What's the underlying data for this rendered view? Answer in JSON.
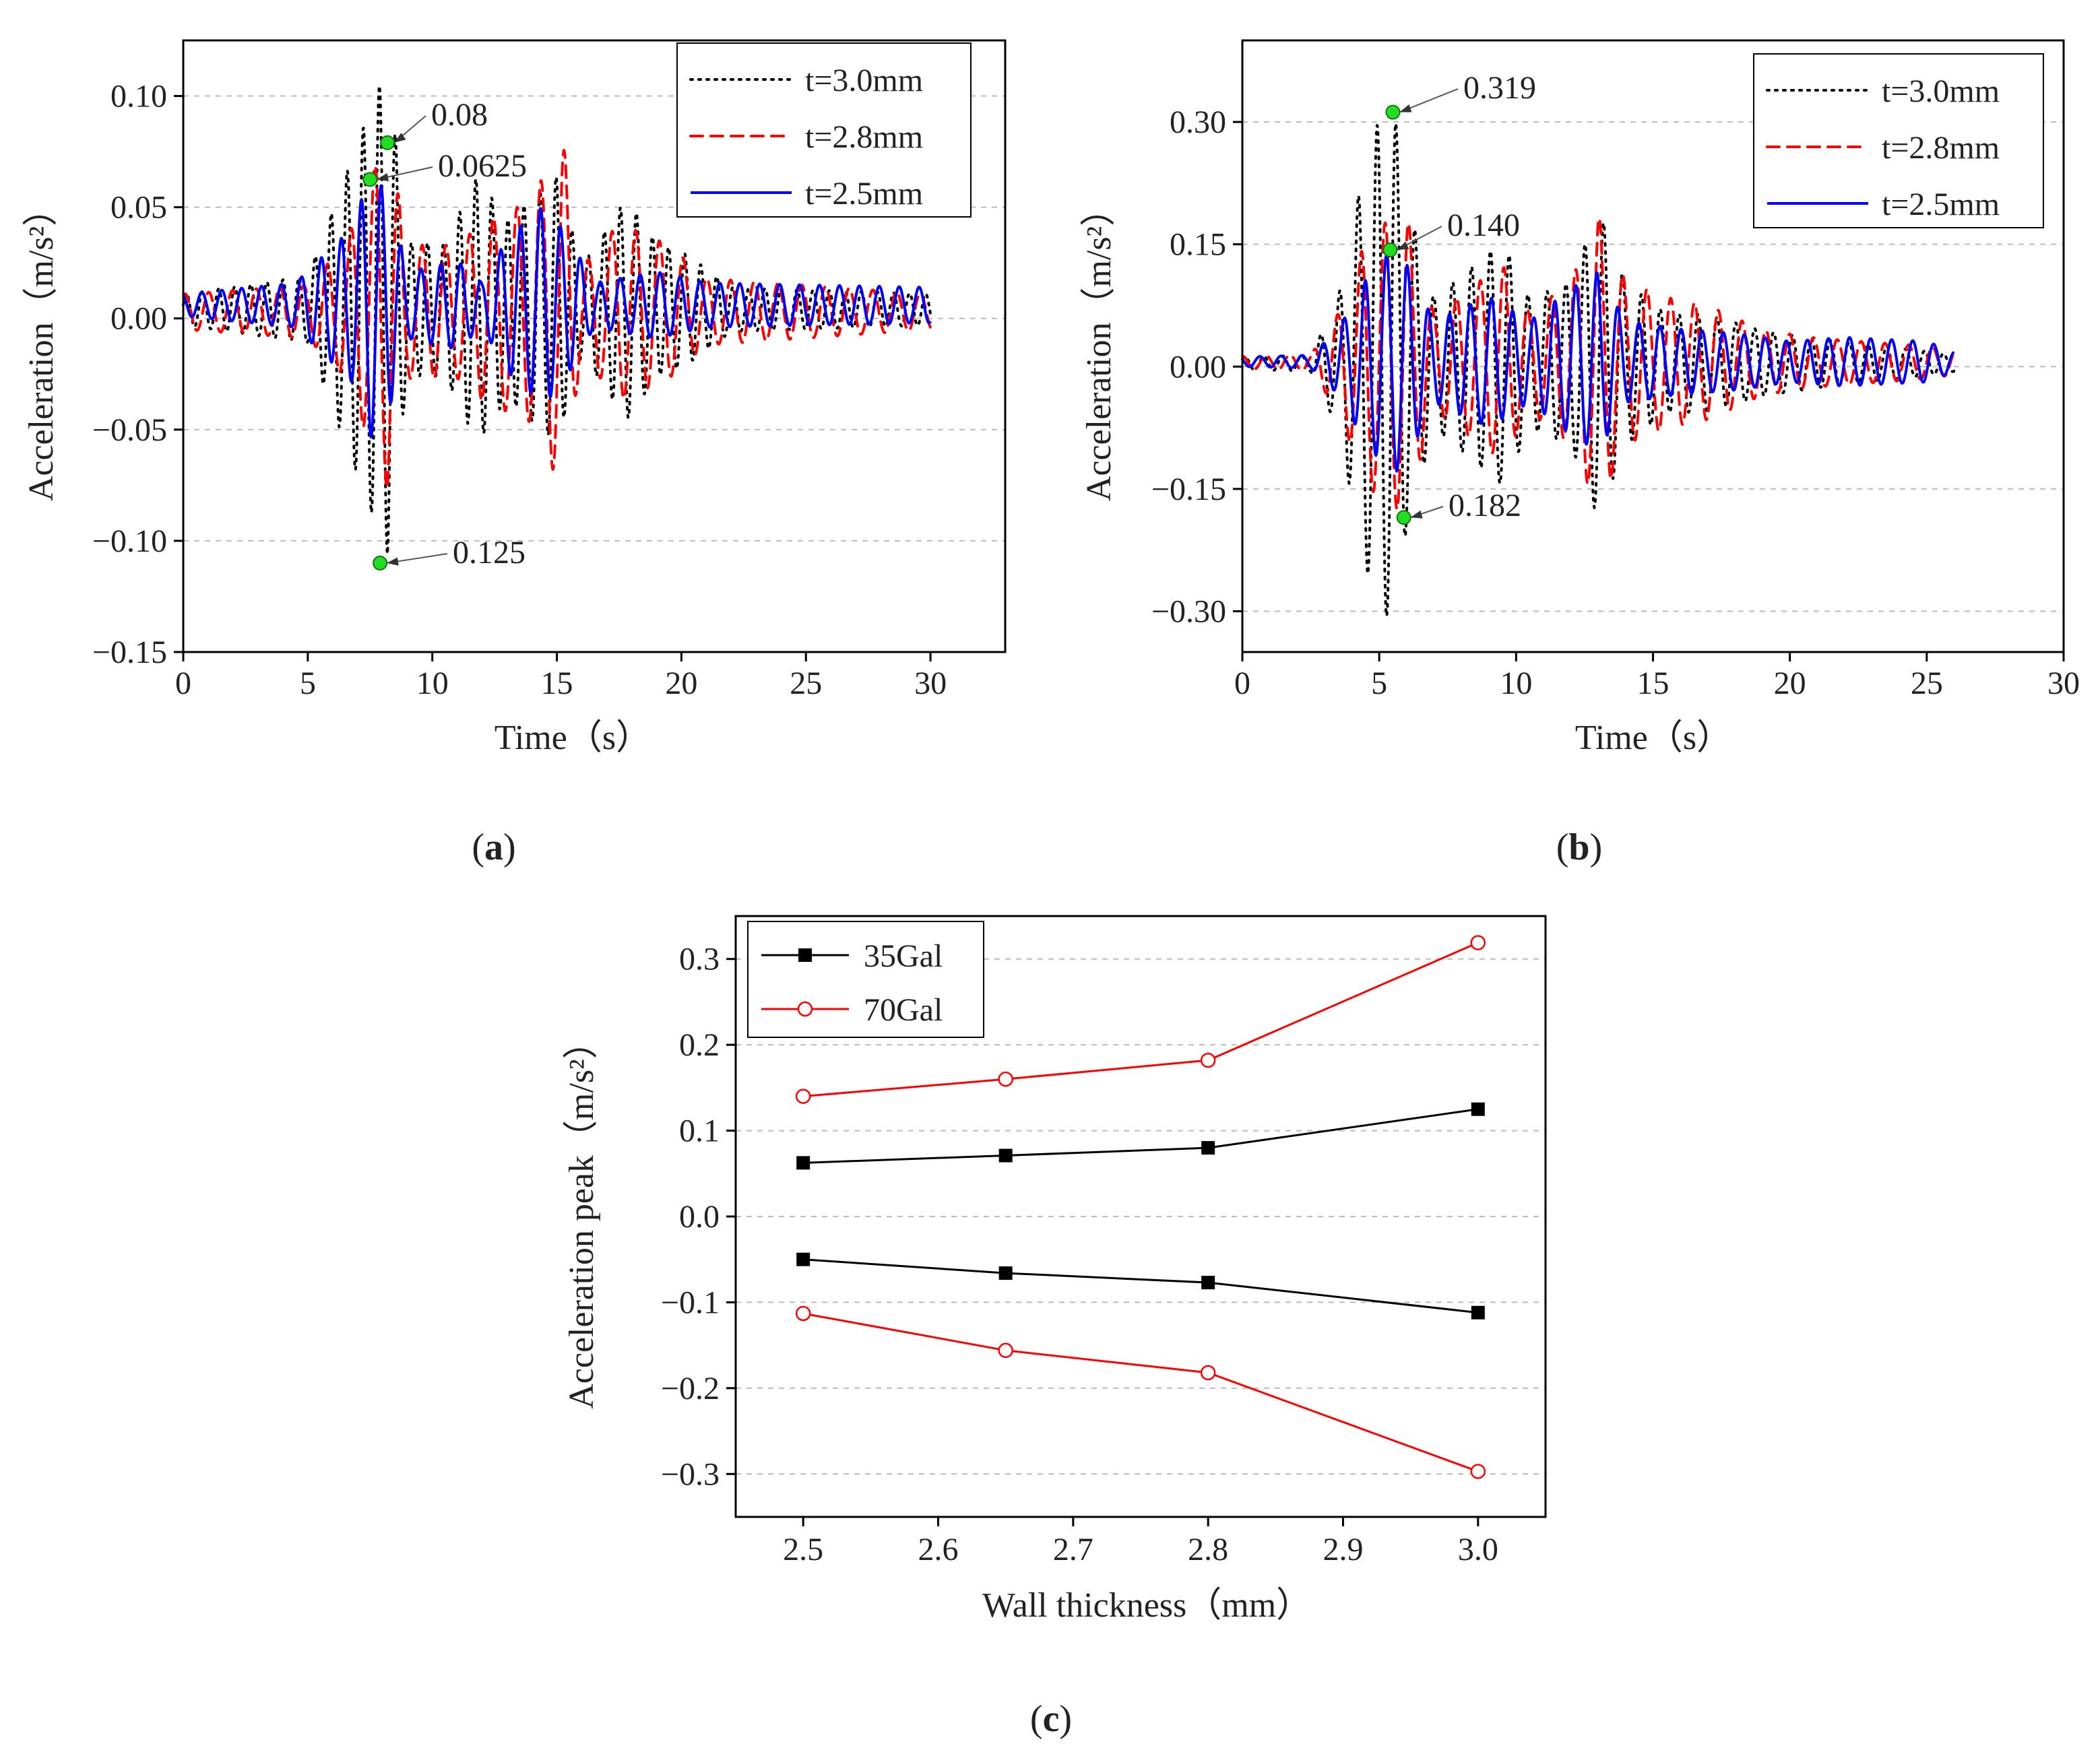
{
  "figure": {
    "panel_labels": [
      {
        "open": "(",
        "letter": "a",
        "close": ")"
      },
      {
        "open": "(",
        "letter": "b",
        "close": ")"
      },
      {
        "open": "(",
        "letter": "c",
        "close": ")"
      }
    ]
  },
  "chart_data": [
    {
      "id": "a",
      "type": "line",
      "title": "",
      "xlabel": "Time（s）",
      "ylabel": "Acceleration（m/s²）",
      "xlim": [
        0,
        33
      ],
      "ylim": [
        -0.15,
        0.125
      ],
      "xticks": [
        0,
        5,
        10,
        15,
        20,
        25,
        30
      ],
      "yticks": [
        -0.15,
        -0.1,
        -0.05,
        0.0,
        0.05,
        0.1
      ],
      "ytick_labels": [
        "−0.15",
        "−0.10",
        "−0.05",
        "0.00",
        "0.05",
        "0.10"
      ],
      "grid": "horizontal dashed",
      "legend": "top-right",
      "series": [
        {
          "name": "t=3.0mm",
          "style": "dotted",
          "color": "#000000",
          "envelope": [
            [
              0,
              0.007
            ],
            [
              5,
              0.015
            ],
            [
              6.5,
              0.06
            ],
            [
              7.5,
              0.09
            ],
            [
              8.2,
              0.11
            ],
            [
              9,
              0.03
            ],
            [
              10.5,
              0.03
            ],
            [
              11.8,
              0.06
            ],
            [
              13,
              0.04
            ],
            [
              15,
              0.06
            ],
            [
              16,
              0.02
            ],
            [
              17.8,
              0.05
            ],
            [
              19,
              0.03
            ],
            [
              20.2,
              0.025
            ],
            [
              22,
              0.01
            ],
            [
              30,
              0.007
            ]
          ]
        },
        {
          "name": "t=2.8mm",
          "style": "dashed",
          "color": "#ff0000",
          "envelope": [
            [
              0,
              0.008
            ],
            [
              5,
              0.012
            ],
            [
              6.5,
              0.03
            ],
            [
              7.5,
              0.06
            ],
            [
              8.2,
              0.08
            ],
            [
              9,
              0.03
            ],
            [
              11,
              0.03
            ],
            [
              12,
              0.04
            ],
            [
              14,
              0.05
            ],
            [
              15.2,
              0.08
            ],
            [
              16,
              0.02
            ],
            [
              17.5,
              0.04
            ],
            [
              19.5,
              0.03
            ],
            [
              21,
              0.015
            ],
            [
              30,
              0.008
            ]
          ]
        },
        {
          "name": "t=2.5mm",
          "style": "solid",
          "color": "#0000ff",
          "envelope": [
            [
              0,
              0.005
            ],
            [
              4.5,
              0.01
            ],
            [
              6.8,
              0.035
            ],
            [
              7.5,
              0.06
            ],
            [
              8.2,
              0.05
            ],
            [
              9,
              0.015
            ],
            [
              11,
              0.02
            ],
            [
              12,
              0.01
            ],
            [
              13,
              0.03
            ],
            [
              14.5,
              0.045
            ],
            [
              15.5,
              0.03
            ],
            [
              16.5,
              0.01
            ],
            [
              19,
              0.015
            ],
            [
              21,
              0.01
            ],
            [
              30,
              0.008
            ]
          ]
        }
      ],
      "annotations": [
        {
          "text": "0.08",
          "x": 8.2,
          "y": 0.079
        },
        {
          "text": "0.0625",
          "x": 7.5,
          "y": 0.0625
        },
        {
          "text": "0.125",
          "x": 7.9,
          "y": -0.11
        }
      ]
    },
    {
      "id": "b",
      "type": "line",
      "title": "",
      "xlabel": "Time（s）",
      "ylabel": "Acceleration（m/s²）",
      "xlim": [
        0,
        30
      ],
      "ylim": [
        -0.35,
        0.4
      ],
      "xticks": [
        0,
        5,
        10,
        15,
        20,
        25,
        30
      ],
      "yticks": [
        -0.3,
        -0.15,
        0.0,
        0.15,
        0.3
      ],
      "ytick_labels": [
        "−0.30",
        "−0.15",
        "0.00",
        "0.15",
        "0.30"
      ],
      "grid": "horizontal dashed",
      "legend": "top-right",
      "series": [
        {
          "name": "t=3.0mm",
          "style": "dotted",
          "color": "#000000",
          "envelope": [
            [
              0,
              0.008
            ],
            [
              2.5,
              0.01
            ],
            [
              3.5,
              0.08
            ],
            [
              4.5,
              0.25
            ],
            [
              5,
              0.3
            ],
            [
              5.5,
              0.32
            ],
            [
              6,
              0.2
            ],
            [
              7,
              0.08
            ],
            [
              9.5,
              0.15
            ],
            [
              10.5,
              0.08
            ],
            [
              12,
              0.1
            ],
            [
              13,
              0.19
            ],
            [
              14,
              0.1
            ],
            [
              15.5,
              0.06
            ],
            [
              17,
              0.06
            ],
            [
              19,
              0.04
            ],
            [
              21,
              0.03
            ],
            [
              25,
              0.015
            ],
            [
              26,
              0.01
            ]
          ]
        },
        {
          "name": "t=2.8mm",
          "style": "dashed",
          "color": "#ff0000",
          "envelope": [
            [
              0,
              0.008
            ],
            [
              2.5,
              0.01
            ],
            [
              3.5,
              0.06
            ],
            [
              4.5,
              0.15
            ],
            [
              5.5,
              0.18
            ],
            [
              6,
              0.18
            ],
            [
              7,
              0.06
            ],
            [
              9.5,
              0.12
            ],
            [
              10.5,
              0.06
            ],
            [
              12,
              0.1
            ],
            [
              13,
              0.18
            ],
            [
              14,
              0.1
            ],
            [
              15.5,
              0.08
            ],
            [
              17,
              0.07
            ],
            [
              19,
              0.04
            ],
            [
              21,
              0.03
            ],
            [
              25,
              0.02
            ],
            [
              26,
              0.015
            ]
          ]
        },
        {
          "name": "t=2.5mm",
          "style": "solid",
          "color": "#0000ff",
          "envelope": [
            [
              0,
              0.006
            ],
            [
              2.5,
              0.008
            ],
            [
              3.5,
              0.04
            ],
            [
              4.5,
              0.1
            ],
            [
              5.5,
              0.14
            ],
            [
              6,
              0.12
            ],
            [
              7,
              0.05
            ],
            [
              9,
              0.08
            ],
            [
              10.5,
              0.05
            ],
            [
              12,
              0.09
            ],
            [
              13,
              0.11
            ],
            [
              14,
              0.05
            ],
            [
              16,
              0.04
            ],
            [
              18,
              0.035
            ],
            [
              20,
              0.025
            ],
            [
              22,
              0.03
            ],
            [
              25,
              0.025
            ],
            [
              26,
              0.012
            ]
          ]
        }
      ],
      "annotations": [
        {
          "text": "0.319",
          "x": 5.5,
          "y": 0.312
        },
        {
          "text": "0.140",
          "x": 5.4,
          "y": 0.143
        },
        {
          "text": "0.182",
          "x": 5.9,
          "y": -0.185
        }
      ]
    },
    {
      "id": "c",
      "type": "line",
      "title": "",
      "xlabel": "Wall thickness（mm）",
      "ylabel": "Acceleration peak（m/s²）",
      "xlim": [
        2.45,
        3.05
      ],
      "ylim": [
        -0.35,
        0.35
      ],
      "xticks": [
        2.5,
        2.6,
        2.7,
        2.8,
        2.9,
        3.0
      ],
      "xtick_labels": [
        "2.5",
        "2.6",
        "2.7",
        "2.8",
        "2.9",
        "3.0"
      ],
      "yticks": [
        -0.3,
        -0.2,
        -0.1,
        0.0,
        0.1,
        0.2,
        0.3
      ],
      "ytick_labels": [
        "−0.3",
        "−0.2",
        "−0.1",
        "0.0",
        "0.1",
        "0.2",
        "0.3"
      ],
      "grid": "horizontal dashed",
      "legend": "top-left",
      "x": [
        2.5,
        2.65,
        2.8,
        3.0
      ],
      "series": [
        {
          "name": "35Gal",
          "color": "#000000",
          "marker": "filled-square",
          "upper": [
            0.0625,
            0.071,
            0.08,
            0.125
          ],
          "lower": [
            -0.05,
            -0.066,
            -0.077,
            -0.112
          ]
        },
        {
          "name": "70Gal",
          "color": "#ff0000",
          "marker": "open-circle",
          "upper": [
            0.14,
            0.16,
            0.182,
            0.319
          ],
          "lower": [
            -0.113,
            -0.156,
            -0.182,
            -0.297
          ]
        }
      ]
    }
  ]
}
